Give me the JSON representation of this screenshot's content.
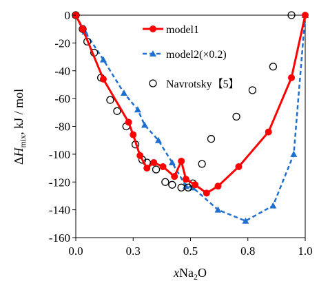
{
  "chart_data": {
    "type": "line",
    "xlabel": "xNa2O",
    "xlabel_parts": {
      "italic": "x",
      "main": "Na",
      "sub": "2",
      "tail": "O"
    },
    "ylabel": "ΔHmix, kJ / mol",
    "ylabel_parts": {
      "delta": "Δ",
      "italic": "H",
      "sub": "mix",
      "tail": ", kJ / mol"
    },
    "xlim": [
      0,
      1
    ],
    "ylim": [
      -160,
      0
    ],
    "x_ticks": [
      0,
      0.25,
      0.5,
      0.75,
      1.0
    ],
    "x_tick_labels": [
      "0.0",
      "0.3",
      "0.5",
      "0.8",
      "1.0"
    ],
    "y_ticks": [
      0,
      -20,
      -40,
      -60,
      -80,
      -100,
      -120,
      -140,
      -160
    ],
    "y_tick_labels": [
      "0",
      "-20",
      "-40",
      "-60",
      "-80",
      "-100",
      "-120",
      "-140",
      "-160"
    ],
    "grid": false,
    "legend_position": "top-right",
    "series": [
      {
        "name": "model1",
        "style": "line-circle",
        "color": "#ff0000",
        "x": [
          0.0,
          0.03,
          0.12,
          0.23,
          0.25,
          0.28,
          0.31,
          0.34,
          0.38,
          0.43,
          0.46,
          0.48,
          0.52,
          0.57,
          0.62,
          0.71,
          0.84,
          0.94,
          1.0
        ],
        "y": [
          0,
          -10,
          -46,
          -77,
          -86,
          -101,
          -110,
          -106,
          -109,
          -116,
          -105,
          -118,
          -122,
          -128,
          -123,
          -109,
          -84,
          -45,
          0
        ]
      },
      {
        "name": "model2(×0.2)",
        "style": "dashed-triangle",
        "color": "#1f6fd0",
        "x": [
          0.0,
          0.04,
          0.12,
          0.21,
          0.27,
          0.3,
          0.36,
          0.42,
          0.48,
          0.51,
          0.62,
          0.74,
          0.86,
          0.95,
          1.0
        ],
        "y": [
          0,
          -12,
          -32,
          -56,
          -68,
          -79,
          -90,
          -106,
          -123,
          -124,
          -140,
          -148,
          -137,
          -100,
          0
        ]
      },
      {
        "name": "Navrotsky【5】",
        "style": "open-circle",
        "color": "#000000",
        "x": [
          0.0,
          0.03,
          0.05,
          0.08,
          0.11,
          0.15,
          0.18,
          0.22,
          0.26,
          0.29,
          0.31,
          0.35,
          0.39,
          0.42,
          0.46,
          0.49,
          0.51,
          0.55,
          0.59,
          0.7,
          0.77,
          0.86,
          0.94
        ],
        "y": [
          0,
          -10,
          -19,
          -27,
          -45,
          -61,
          -69,
          -80,
          -93,
          -104,
          -106,
          -111,
          -120,
          -122,
          -124,
          -124,
          -121,
          -107,
          -89,
          -73,
          -54,
          -37,
          0
        ]
      }
    ]
  }
}
